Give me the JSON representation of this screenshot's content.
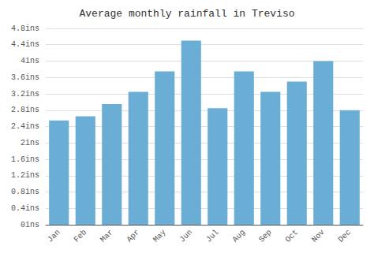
{
  "chart_data": {
    "type": "bar",
    "title": "Average monthly rainfall in Treviso",
    "categories": [
      "Jan",
      "Feb",
      "Mar",
      "Apr",
      "May",
      "Jun",
      "Jul",
      "Aug",
      "Sep",
      "Oct",
      "Nov",
      "Dec"
    ],
    "values": [
      2.55,
      2.65,
      2.95,
      3.25,
      3.75,
      4.5,
      2.85,
      3.75,
      3.25,
      3.5,
      4.0,
      2.8
    ],
    "color": "#6aaed6",
    "ylim": [
      0,
      4.8
    ],
    "yticks": [
      {
        "value": 0,
        "label": "0ins"
      },
      {
        "value": 0.4,
        "label": "0.4ins"
      },
      {
        "value": 0.8,
        "label": "0.8ins"
      },
      {
        "value": 1.2,
        "label": "1.2ins"
      },
      {
        "value": 1.6,
        "label": "1.6ins"
      },
      {
        "value": 2.0,
        "label": "2ins"
      },
      {
        "value": 2.4,
        "label": "2.4ins"
      },
      {
        "value": 2.8,
        "label": "2.8ins"
      },
      {
        "value": 3.2,
        "label": "3.2ins"
      },
      {
        "value": 3.6,
        "label": "3.6ins"
      },
      {
        "value": 4.0,
        "label": "4ins"
      },
      {
        "value": 4.4,
        "label": "4.4ins"
      },
      {
        "value": 4.8,
        "label": "4.8ins"
      }
    ],
    "grid": true
  }
}
